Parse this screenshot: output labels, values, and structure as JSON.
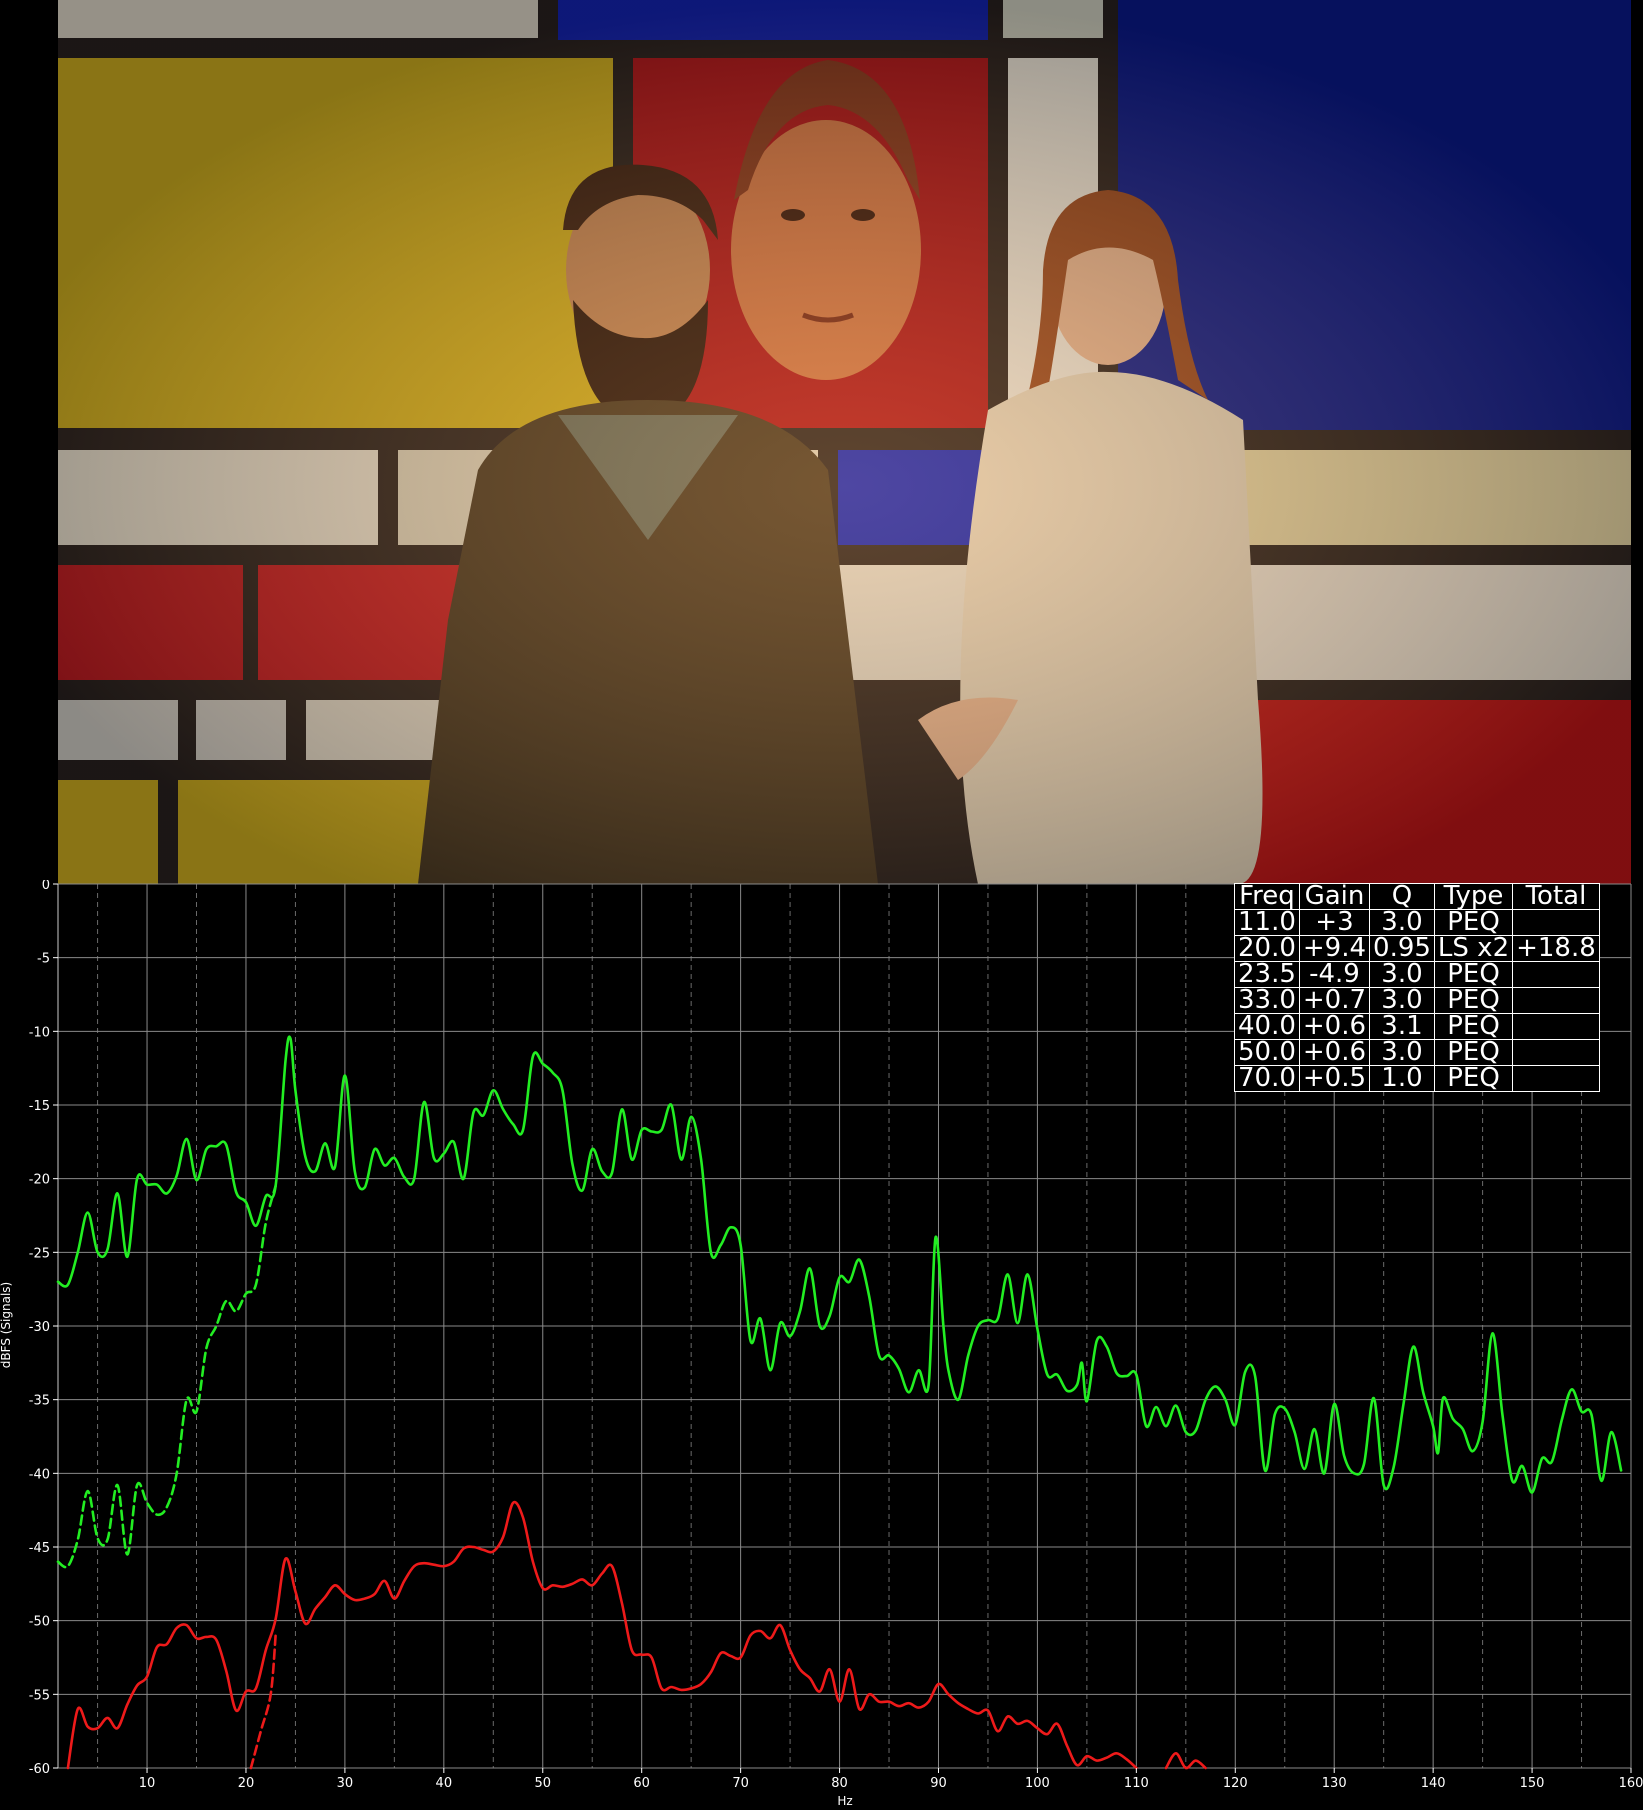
{
  "poster": {
    "colors": {
      "yellow": "#d4b320",
      "red": "#b3161c",
      "blue": "#0a1a8f",
      "cream": "#e8dcc0",
      "lead": "#2a2220"
    }
  },
  "chart_data": {
    "type": "line",
    "title": "",
    "xlabel": "Hz",
    "ylabel": "dBFS (Signals)",
    "xlim": [
      1,
      160
    ],
    "ylim": [
      -60,
      0
    ],
    "xticks": [
      10,
      20,
      30,
      40,
      50,
      60,
      70,
      80,
      90,
      100,
      110,
      120,
      130,
      140,
      150,
      160
    ],
    "yticks": [
      0,
      -5,
      -10,
      -15,
      -20,
      -25,
      -30,
      -35,
      -40,
      -45,
      -50,
      -55,
      -60
    ],
    "grid": true,
    "minor_grid": "dashed vertical lines at 5 Hz offsets",
    "series": [
      {
        "color": "#22ee22",
        "style": "solid",
        "points": [
          [
            1,
            -27
          ],
          [
            2,
            -27.2
          ],
          [
            3,
            -25
          ],
          [
            4,
            -22.3
          ],
          [
            5,
            -25
          ],
          [
            6,
            -24.8
          ],
          [
            7,
            -21
          ],
          [
            8,
            -25.3
          ],
          [
            9,
            -20
          ],
          [
            10,
            -20.4
          ],
          [
            11,
            -20.4
          ],
          [
            12,
            -21
          ],
          [
            13,
            -19.8
          ],
          [
            14,
            -17.3
          ],
          [
            15,
            -20.1
          ],
          [
            16,
            -18
          ],
          [
            17,
            -17.8
          ],
          [
            18,
            -17.7
          ],
          [
            19,
            -20.9
          ],
          [
            20,
            -21.6
          ],
          [
            21,
            -23.2
          ],
          [
            22,
            -21.2
          ],
          [
            23,
            -20.5
          ],
          [
            24,
            -12
          ],
          [
            24.5,
            -10.5
          ],
          [
            25,
            -14
          ],
          [
            26,
            -18.5
          ],
          [
            27,
            -19.5
          ],
          [
            28,
            -17.6
          ],
          [
            29,
            -19.2
          ],
          [
            30,
            -13
          ],
          [
            31,
            -19.5
          ],
          [
            32,
            -20.6
          ],
          [
            33,
            -18
          ],
          [
            34,
            -19.1
          ],
          [
            35,
            -18.6
          ],
          [
            36,
            -19.9
          ],
          [
            37,
            -20
          ],
          [
            38,
            -14.8
          ],
          [
            39,
            -18.6
          ],
          [
            40,
            -18.3
          ],
          [
            41,
            -17.5
          ],
          [
            42,
            -20
          ],
          [
            43,
            -15.5
          ],
          [
            44,
            -15.7
          ],
          [
            45,
            -14
          ],
          [
            46,
            -15.3
          ],
          [
            47,
            -16.3
          ],
          [
            48,
            -16.7
          ],
          [
            49,
            -11.7
          ],
          [
            50,
            -12.2
          ],
          [
            51,
            -12.8
          ],
          [
            52,
            -14
          ],
          [
            53,
            -19
          ],
          [
            54,
            -20.8
          ],
          [
            55,
            -18
          ],
          [
            56,
            -19.5
          ],
          [
            57,
            -19.6
          ],
          [
            58,
            -15.3
          ],
          [
            59,
            -18.7
          ],
          [
            60,
            -16.7
          ],
          [
            61,
            -16.8
          ],
          [
            62,
            -16.7
          ],
          [
            63,
            -15
          ],
          [
            64,
            -18.7
          ],
          [
            65,
            -15.8
          ],
          [
            66,
            -18.7
          ],
          [
            67,
            -25
          ],
          [
            68,
            -24.5
          ],
          [
            69,
            -23.3
          ],
          [
            70,
            -24.5
          ],
          [
            71,
            -31
          ],
          [
            72,
            -29.5
          ],
          [
            73,
            -33
          ],
          [
            74,
            -29.8
          ],
          [
            75,
            -30.7
          ],
          [
            76,
            -29
          ],
          [
            77,
            -26.1
          ],
          [
            78,
            -30
          ],
          [
            79,
            -29.3
          ],
          [
            80,
            -26.7
          ],
          [
            81,
            -27
          ],
          [
            82,
            -25.5
          ],
          [
            83,
            -28
          ],
          [
            84,
            -32
          ],
          [
            85,
            -32
          ],
          [
            86,
            -32.9
          ],
          [
            87,
            -34.5
          ],
          [
            88,
            -33
          ],
          [
            89,
            -34
          ],
          [
            89.7,
            -24
          ],
          [
            90.5,
            -30
          ],
          [
            91,
            -33
          ],
          [
            92,
            -35
          ],
          [
            93,
            -32
          ],
          [
            94,
            -30
          ],
          [
            95,
            -29.6
          ],
          [
            96,
            -29.5
          ],
          [
            97,
            -26.5
          ],
          [
            98,
            -29.8
          ],
          [
            99,
            -26.5
          ],
          [
            100,
            -30.2
          ],
          [
            101,
            -33.3
          ],
          [
            102,
            -33.3
          ],
          [
            103,
            -34.4
          ],
          [
            104,
            -34
          ],
          [
            104.5,
            -32.5
          ],
          [
            105,
            -35.1
          ],
          [
            106,
            -31
          ],
          [
            107,
            -31.4
          ],
          [
            108,
            -33.2
          ],
          [
            109,
            -33.4
          ],
          [
            110,
            -33.3
          ],
          [
            111,
            -36.8
          ],
          [
            112,
            -35.5
          ],
          [
            113,
            -36.8
          ],
          [
            114,
            -35.4
          ],
          [
            115,
            -37.2
          ],
          [
            116,
            -37.1
          ],
          [
            117,
            -35
          ],
          [
            118,
            -34.1
          ],
          [
            119,
            -35
          ],
          [
            120,
            -36.7
          ],
          [
            121,
            -33.1
          ],
          [
            122,
            -33.4
          ],
          [
            123,
            -39.8
          ],
          [
            124,
            -36
          ],
          [
            125,
            -35.6
          ],
          [
            126,
            -37.2
          ],
          [
            127,
            -39.7
          ],
          [
            128,
            -37
          ],
          [
            129,
            -40
          ],
          [
            130,
            -35.3
          ],
          [
            131,
            -38.8
          ],
          [
            132,
            -40
          ],
          [
            133,
            -39.4
          ],
          [
            134,
            -34.9
          ],
          [
            135,
            -40.8
          ],
          [
            136,
            -39.6
          ],
          [
            137,
            -35.3
          ],
          [
            138,
            -31.4
          ],
          [
            139,
            -34.5
          ],
          [
            140,
            -36.8
          ],
          [
            140.5,
            -38.6
          ],
          [
            141,
            -34.9
          ],
          [
            142,
            -36.3
          ],
          [
            143,
            -37
          ],
          [
            144,
            -38.5
          ],
          [
            145,
            -36.5
          ],
          [
            146,
            -30.5
          ],
          [
            147,
            -36
          ],
          [
            148,
            -40.5
          ],
          [
            149,
            -39.5
          ],
          [
            150,
            -41.3
          ],
          [
            151,
            -39
          ],
          [
            152,
            -39.2
          ],
          [
            153,
            -36.4
          ],
          [
            154,
            -34.3
          ],
          [
            155,
            -35.8
          ],
          [
            156,
            -36
          ],
          [
            157,
            -40.5
          ],
          [
            158,
            -37.2
          ],
          [
            159,
            -39.8
          ]
        ]
      },
      {
        "color": "#22ee22",
        "style": "dashed",
        "points": [
          [
            1,
            -46
          ],
          [
            2,
            -46.3
          ],
          [
            3,
            -44.5
          ],
          [
            4,
            -41.2
          ],
          [
            5,
            -44.4
          ],
          [
            6,
            -44.5
          ],
          [
            7,
            -40.8
          ],
          [
            8,
            -45.5
          ],
          [
            9,
            -40.8
          ],
          [
            10,
            -42
          ],
          [
            11,
            -42.8
          ],
          [
            12,
            -42.3
          ],
          [
            13,
            -40
          ],
          [
            14,
            -35
          ],
          [
            15,
            -35.8
          ],
          [
            16,
            -31.5
          ],
          [
            17,
            -30
          ],
          [
            18,
            -28.3
          ],
          [
            19,
            -29
          ],
          [
            20,
            -27.8
          ],
          [
            21,
            -27.2
          ],
          [
            22,
            -23
          ],
          [
            23,
            -20.5
          ]
        ]
      },
      {
        "color": "#ee1a1a",
        "style": "solid",
        "points": [
          [
            2,
            -60
          ],
          [
            3,
            -56
          ],
          [
            4,
            -57.2
          ],
          [
            5,
            -57.3
          ],
          [
            6,
            -56.6
          ],
          [
            7,
            -57.3
          ],
          [
            8,
            -55.7
          ],
          [
            9,
            -54.4
          ],
          [
            10,
            -53.8
          ],
          [
            11,
            -51.8
          ],
          [
            12,
            -51.6
          ],
          [
            13,
            -50.5
          ],
          [
            14,
            -50.3
          ],
          [
            15,
            -51.2
          ],
          [
            16,
            -51.1
          ],
          [
            17,
            -51.3
          ],
          [
            18,
            -53.4
          ],
          [
            19,
            -56.1
          ],
          [
            20,
            -54.8
          ],
          [
            21,
            -54.6
          ],
          [
            22,
            -52
          ],
          [
            23,
            -49.9
          ],
          [
            24,
            -45.8
          ],
          [
            25,
            -48
          ],
          [
            26,
            -50.2
          ],
          [
            27,
            -49.2
          ],
          [
            28,
            -48.4
          ],
          [
            29,
            -47.6
          ],
          [
            30,
            -48.2
          ],
          [
            31,
            -48.6
          ],
          [
            32,
            -48.5
          ],
          [
            33,
            -48.2
          ],
          [
            34,
            -47.3
          ],
          [
            35,
            -48.5
          ],
          [
            36,
            -47.3
          ],
          [
            37,
            -46.3
          ],
          [
            38,
            -46.1
          ],
          [
            39,
            -46.2
          ],
          [
            40,
            -46.3
          ],
          [
            41,
            -46
          ],
          [
            42,
            -45.1
          ],
          [
            43,
            -45
          ],
          [
            44,
            -45.2
          ],
          [
            45,
            -45.3
          ],
          [
            46,
            -44.3
          ],
          [
            47,
            -42
          ],
          [
            48,
            -43
          ],
          [
            49,
            -46
          ],
          [
            50,
            -47.8
          ],
          [
            51,
            -47.6
          ],
          [
            52,
            -47.7
          ],
          [
            53,
            -47.5
          ],
          [
            54,
            -47.2
          ],
          [
            55,
            -47.6
          ],
          [
            56,
            -46.8
          ],
          [
            57,
            -46.3
          ],
          [
            58,
            -48.8
          ],
          [
            59,
            -52
          ],
          [
            60,
            -52.3
          ],
          [
            61,
            -52.5
          ],
          [
            62,
            -54.6
          ],
          [
            63,
            -54.5
          ],
          [
            64,
            -54.7
          ],
          [
            65,
            -54.6
          ],
          [
            66,
            -54.3
          ],
          [
            67,
            -53.5
          ],
          [
            68,
            -52.2
          ],
          [
            69,
            -52.4
          ],
          [
            70,
            -52.5
          ],
          [
            71,
            -51
          ],
          [
            72,
            -50.7
          ],
          [
            73,
            -51.2
          ],
          [
            74,
            -50.3
          ],
          [
            75,
            -52
          ],
          [
            76,
            -53.3
          ],
          [
            77,
            -53.9
          ],
          [
            78,
            -54.8
          ],
          [
            79,
            -53.3
          ],
          [
            80,
            -55.5
          ],
          [
            81,
            -53.3
          ],
          [
            82,
            -56
          ],
          [
            83,
            -55
          ],
          [
            84,
            -55.5
          ],
          [
            85,
            -55.5
          ],
          [
            86,
            -55.8
          ],
          [
            87,
            -55.6
          ],
          [
            88,
            -55.9
          ],
          [
            89,
            -55.5
          ],
          [
            90,
            -54.3
          ],
          [
            91,
            -55
          ],
          [
            92,
            -55.6
          ],
          [
            93,
            -56
          ],
          [
            94,
            -56.3
          ],
          [
            95,
            -56.1
          ],
          [
            96,
            -57.5
          ],
          [
            97,
            -56.5
          ],
          [
            98,
            -57
          ],
          [
            99,
            -56.8
          ],
          [
            100,
            -57.3
          ],
          [
            101,
            -57.7
          ],
          [
            102,
            -57
          ],
          [
            103,
            -58.5
          ],
          [
            104,
            -59.8
          ],
          [
            105,
            -59.2
          ],
          [
            106,
            -59.5
          ],
          [
            107,
            -59.3
          ],
          [
            108,
            -59
          ],
          [
            109,
            -59.4
          ],
          [
            110,
            -60
          ]
        ]
      },
      {
        "color": "#ee1a1a",
        "style": "solid",
        "points": [
          [
            113,
            -60
          ],
          [
            114,
            -59
          ],
          [
            115,
            -60
          ],
          [
            116,
            -59.5
          ],
          [
            117,
            -60
          ]
        ]
      },
      {
        "color": "#ee1a1a",
        "style": "dashed",
        "points": [
          [
            20.5,
            -60
          ],
          [
            21.5,
            -57.5
          ],
          [
            22.5,
            -55
          ],
          [
            23,
            -51
          ]
        ]
      }
    ]
  },
  "eq_table": {
    "headers": [
      "Freq",
      "Gain",
      "Q",
      "Type",
      "Total"
    ],
    "rows": [
      [
        "11.0",
        "+3",
        "3.0",
        "PEQ",
        ""
      ],
      [
        "20.0",
        "+9.4",
        "0.95",
        "LS x2",
        "+18.8"
      ],
      [
        "23.5",
        "-4.9",
        "3.0",
        "PEQ",
        ""
      ],
      [
        "33.0",
        "+0.7",
        "3.0",
        "PEQ",
        ""
      ],
      [
        "40.0",
        "+0.6",
        "3.1",
        "PEQ",
        ""
      ],
      [
        "50.0",
        "+0.6",
        "3.0",
        "PEQ",
        ""
      ],
      [
        "70.0",
        "+0.5",
        "1.0",
        "PEQ",
        ""
      ]
    ]
  }
}
